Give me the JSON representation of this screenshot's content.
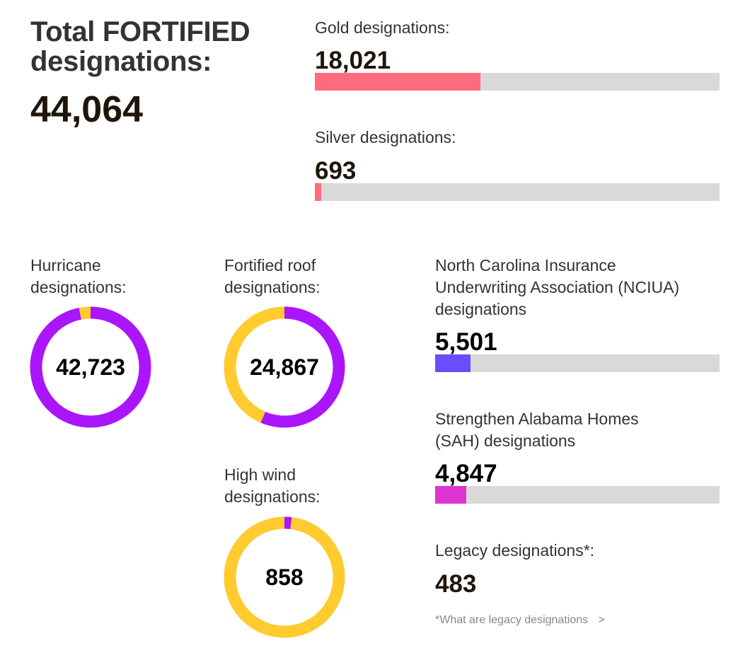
{
  "header": {
    "title_line1": "Total FORTIFIED",
    "title_line2": "designations:",
    "total": "44,064"
  },
  "colors": {
    "bar_track": "#d9d9d9",
    "gold_silver": "#ff6b7d",
    "ncua": "#6b4dff",
    "sah": "#dd36d2",
    "purple": "#aa15fc",
    "yellow": "#ffcb2e"
  },
  "bars": [
    {
      "label": "Gold designations:",
      "value_text": "18,021",
      "value": 18021,
      "fraction": 0.409,
      "color": "#ff6b7d"
    },
    {
      "label": "Silver designations:",
      "value_text": "693",
      "value": 693,
      "fraction": 0.0157,
      "color": "#ff6b7d"
    },
    {
      "label_line1": "North Carolina Insurance",
      "label_line2": "Underwriting Association (NCIUA)",
      "label_line3": "designations",
      "value_text": "5,501",
      "value": 5501,
      "fraction": 0.1248,
      "color": "#6b4dff"
    },
    {
      "label_line1": "Strengthen Alabama Homes",
      "label_line2": "(SAH) designations",
      "value_text": "4,847",
      "value": 4847,
      "fraction": 0.11,
      "color": "#dd36d2"
    }
  ],
  "legacy": {
    "label": "Legacy designations*:",
    "value_text": "483",
    "note": "*What are legacy designations",
    "note_chevron": ">"
  },
  "chart_data": [
    {
      "type": "pie",
      "title_line1": "Hurricane",
      "title_line2": "designations:",
      "center_label": "42,723",
      "total": 44064,
      "slices": [
        {
          "name": "Hurricane",
          "value": 42723,
          "color": "#aa15fc"
        },
        {
          "name": "Other",
          "value": 1341,
          "color": "#ffcb2e"
        }
      ],
      "highlight_direction": "clockwise-from-top",
      "highlight_first": false
    },
    {
      "type": "pie",
      "title_line1": "Fortified roof",
      "title_line2": "designations:",
      "center_label": "24,867",
      "total": 44064,
      "slices": [
        {
          "name": "Fortified roof",
          "value": 24867,
          "color": "#aa15fc"
        },
        {
          "name": "Other",
          "value": 19197,
          "color": "#ffcb2e"
        }
      ],
      "highlight_first": true
    },
    {
      "type": "pie",
      "title_line1": "High wind",
      "title_line2": "designations:",
      "center_label": "858",
      "total": 44064,
      "slices": [
        {
          "name": "High wind",
          "value": 858,
          "color": "#aa15fc"
        },
        {
          "name": "Other",
          "value": 43206,
          "color": "#ffcb2e"
        }
      ],
      "highlight_first": true
    }
  ]
}
